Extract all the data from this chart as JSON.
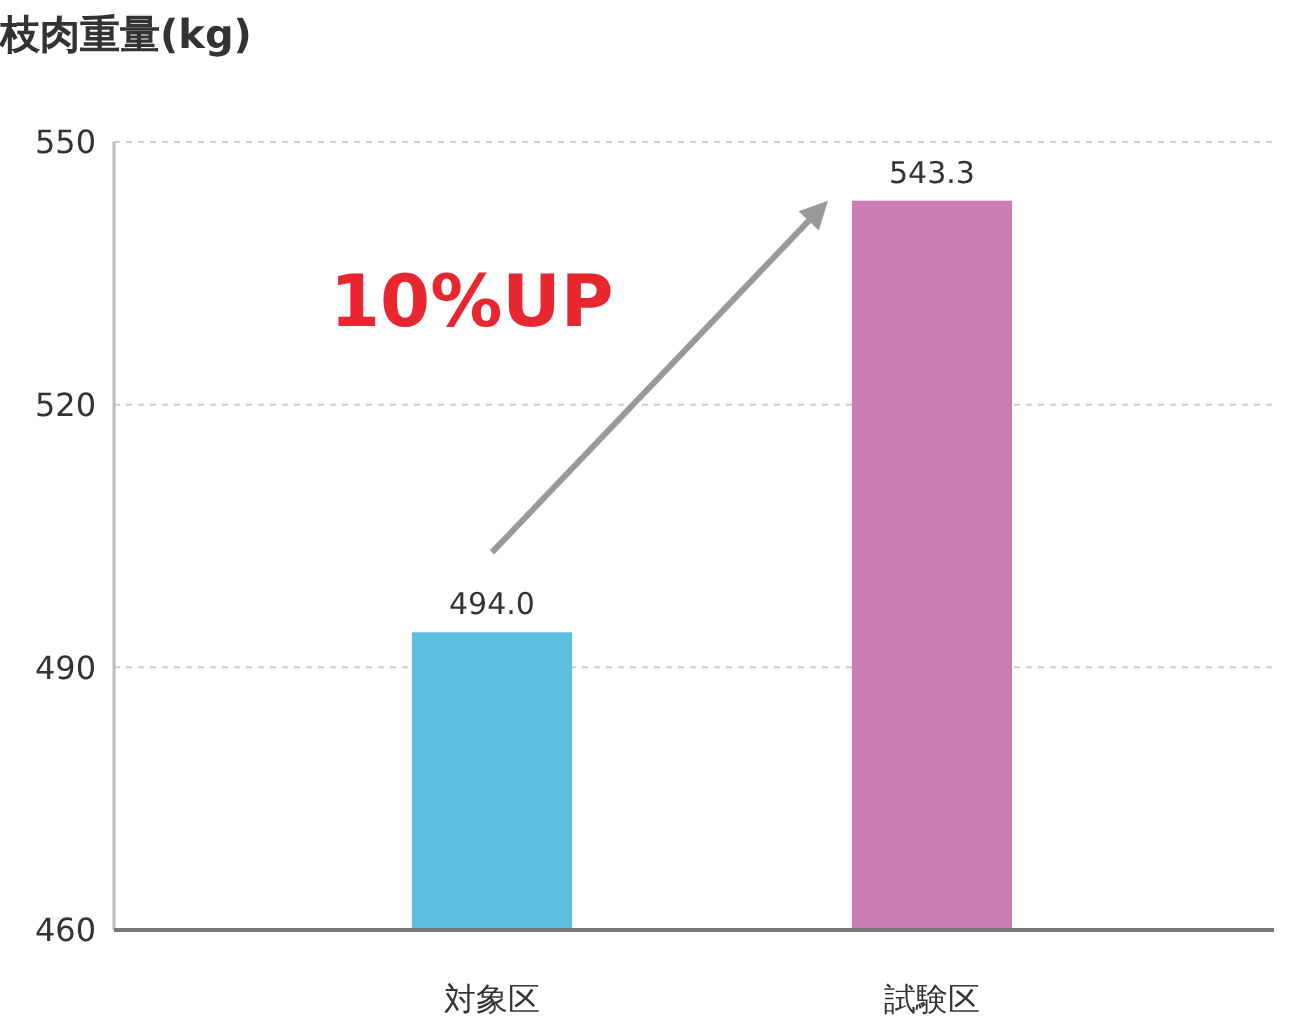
{
  "chart_data": {
    "type": "bar",
    "title": "枝肉重量(kg)",
    "categories": [
      "対象区",
      "試験区"
    ],
    "values": [
      494.0,
      543.3
    ],
    "colors": [
      "#5bbfdf",
      "#c97db0"
    ],
    "ylim": [
      460,
      550
    ],
    "yticks": [
      460,
      490,
      520,
      550
    ],
    "grid": "y",
    "value_labels": [
      "494.0",
      "543.3"
    ],
    "annotations": [
      "10%UP"
    ]
  }
}
